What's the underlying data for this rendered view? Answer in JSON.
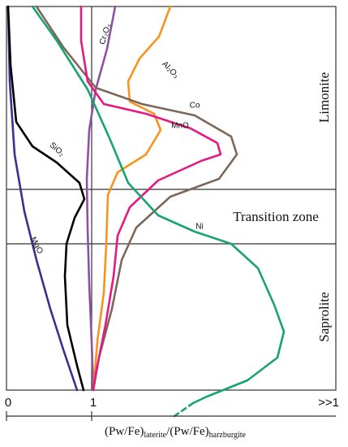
{
  "zones": {
    "top": "Limonite",
    "middle": "Transition zone",
    "bottom": "Saprolite"
  },
  "curve_labels": {
    "cr2o3": "Cr₂O₃",
    "al2o3": "Al₂O₃",
    "co": "Co",
    "mno": "MnO",
    "sio2": "SiO₂",
    "mgo": "MgO",
    "ni": "Ni"
  },
  "x_axis": {
    "ticks": [
      "0",
      "1",
      ">>1"
    ],
    "title": [
      "(Pw/Fe)",
      "laterite",
      "/(Pw/Fe)",
      "harzburgite"
    ]
  }
}
